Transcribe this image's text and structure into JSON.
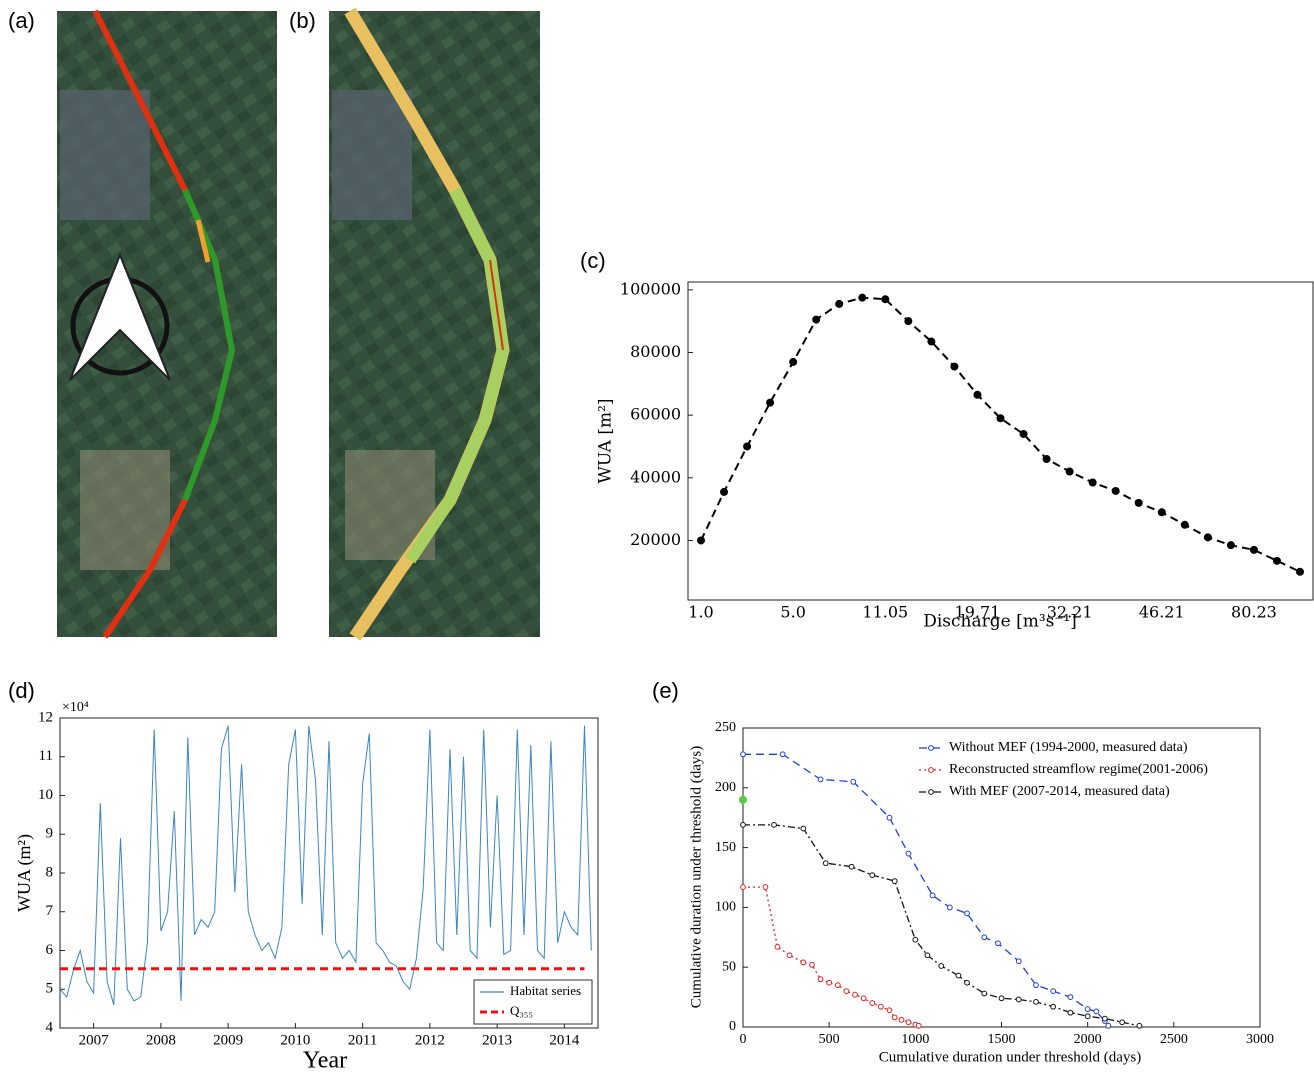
{
  "panels": [
    {
      "label": "(a)"
    },
    {
      "label": "(b)"
    }
  ],
  "chart_data": [
    {
      "type": "line",
      "panel_label": "(c)",
      "x_label": "Discharge [m³s⁻¹]",
      "y_label": "WUA [m²]",
      "categories": [
        "1.0",
        null,
        null,
        null,
        "5.0",
        null,
        null,
        null,
        "11.05",
        null,
        null,
        null,
        "19.71",
        null,
        null,
        null,
        "32.21",
        null,
        null,
        null,
        "46.21",
        null,
        null,
        null,
        "80.23",
        null,
        null
      ],
      "series": [
        {
          "color": "#000000",
          "line_style": "dashed",
          "marker": "filled",
          "values": [
            20000,
            35500,
            50000,
            64000,
            77000,
            90500,
            95500,
            97500,
            97000,
            90000,
            83500,
            75500,
            66500,
            59000,
            54000,
            46000,
            42000,
            38500,
            35800,
            32000,
            29000,
            25000,
            21000,
            18500,
            17000,
            13500,
            10000
          ]
        }
      ],
      "ylim": [
        1000,
        102500
      ],
      "yticks": [
        20000,
        40000,
        60000,
        80000,
        100000
      ]
    },
    {
      "type": "line",
      "panel_label": "(d)",
      "x_label": "Year",
      "y_label": "WUA (m²)",
      "y_scale_label": "×10⁴",
      "xlim": [
        2006.5,
        2014.5
      ],
      "xticks": [
        2007,
        2008,
        2009,
        2010,
        2011,
        2012,
        2013,
        2014
      ],
      "ylim": [
        40000,
        120000
      ],
      "yticks": [
        {
          "value": 40000,
          "label": "4"
        },
        {
          "value": 50000,
          "label": "5"
        },
        {
          "value": 60000,
          "label": "6"
        },
        {
          "value": 70000,
          "label": "7"
        },
        {
          "value": 80000,
          "label": "8"
        },
        {
          "value": 90000,
          "label": "9"
        },
        {
          "value": 100000,
          "label": "10"
        },
        {
          "value": 110000,
          "label": "11"
        },
        {
          "value": 120000,
          "label": "12"
        }
      ],
      "legend": "lower right",
      "series": [
        {
          "name": "Habitat series",
          "color": "#3a87c0",
          "line_style": "solid",
          "x": [
            2006.5,
            2006.6,
            2006.7,
            2006.8,
            2006.9,
            2007.0,
            2007.1,
            2007.2,
            2007.3,
            2007.4,
            2007.5,
            2007.6,
            2007.7,
            2007.8,
            2007.9,
            2008.0,
            2008.1,
            2008.2,
            2008.3,
            2008.4,
            2008.5,
            2008.6,
            2008.7,
            2008.8,
            2008.9,
            2009.0,
            2009.1,
            2009.2,
            2009.3,
            2009.4,
            2009.5,
            2009.6,
            2009.7,
            2009.8,
            2009.9,
            2010.0,
            2010.1,
            2010.2,
            2010.3,
            2010.4,
            2010.5,
            2010.6,
            2010.7,
            2010.8,
            2010.9,
            2011.0,
            2011.1,
            2011.2,
            2011.3,
            2011.4,
            2011.5,
            2011.6,
            2011.7,
            2011.8,
            2011.9,
            2012.0,
            2012.1,
            2012.2,
            2012.3,
            2012.4,
            2012.5,
            2012.6,
            2012.7,
            2012.8,
            2012.9,
            2013.0,
            2013.1,
            2013.2,
            2013.3,
            2013.4,
            2013.5,
            2013.6,
            2013.7,
            2013.8,
            2013.9,
            2014.0,
            2014.1,
            2014.2,
            2014.3,
            2014.4
          ],
          "values": [
            50000,
            48000,
            55000,
            60000,
            52000,
            49000,
            98000,
            52000,
            46000,
            89000,
            50000,
            47000,
            48000,
            62000,
            117000,
            65000,
            70000,
            96000,
            47000,
            115000,
            64000,
            68000,
            66000,
            70000,
            112000,
            118000,
            75000,
            108000,
            70000,
            64000,
            60000,
            62000,
            58000,
            66000,
            108000,
            117000,
            72000,
            118000,
            104000,
            64000,
            114000,
            62000,
            58000,
            60000,
            57000,
            103000,
            116000,
            62000,
            60000,
            57000,
            56000,
            52000,
            50000,
            58000,
            76000,
            117000,
            62000,
            60000,
            112000,
            64000,
            110000,
            60000,
            58000,
            117000,
            66000,
            100000,
            59000,
            60000,
            117000,
            64000,
            113000,
            60000,
            58000,
            114000,
            62000,
            70000,
            66000,
            64000,
            118000,
            60000
          ]
        },
        {
          "name": "Q₃₅₅",
          "color": "#ee1111",
          "line_style": "dashed",
          "x": [
            2006.5,
            2014.3
          ],
          "values": [
            55300,
            55300
          ]
        }
      ]
    },
    {
      "type": "line",
      "panel_label": "(e)",
      "x_label": "Cumulative duration under threshold (days)",
      "y_label": "Cumulative duration under threshold (days)",
      "xlim": [
        0,
        3000
      ],
      "xticks": [
        0,
        500,
        1000,
        1500,
        2000,
        2500,
        3000
      ],
      "ylim": [
        0,
        250
      ],
      "yticks": [
        0,
        50,
        100,
        150,
        200,
        250
      ],
      "legend": "upper right",
      "series": [
        {
          "name": "Without MEF (1994-2000, measured data)",
          "color": "#1f3fe0",
          "line_style": "dashed",
          "marker": "open",
          "x": [
            0,
            230,
            450,
            640,
            850,
            960,
            1100,
            1200,
            1300,
            1400,
            1480,
            1600,
            1700,
            1800,
            1900,
            2000,
            2050,
            2100,
            2120
          ],
          "values": [
            228,
            228,
            207,
            205,
            175,
            145,
            110,
            100,
            95,
            75,
            70,
            55,
            35,
            30,
            25,
            15,
            13,
            5,
            1
          ]
        },
        {
          "name": "Reconstructed streamflow regime(2001-2006)",
          "color": "#e02020",
          "line_style": "dotted",
          "marker": "open",
          "x": [
            0,
            130,
            200,
            270,
            350,
            400,
            450,
            500,
            550,
            600,
            650,
            700,
            750,
            800,
            850,
            880,
            920,
            960,
            1000,
            1020
          ],
          "values": [
            117,
            117,
            67,
            60,
            54,
            52,
            40,
            37,
            35,
            30,
            27,
            24,
            20,
            17,
            14,
            8,
            6,
            4,
            2,
            1
          ]
        },
        {
          "name": "With MEF (2007-2014, measured data)",
          "color": "#111111",
          "line_style": "dashdot",
          "marker": "open",
          "x": [
            0,
            180,
            350,
            480,
            630,
            750,
            880,
            1000,
            1070,
            1150,
            1250,
            1300,
            1400,
            1500,
            1600,
            1700,
            1800,
            1900,
            2000,
            2100,
            2200,
            2300
          ],
          "values": [
            169,
            169,
            166,
            137,
            134,
            127,
            122,
            73,
            60,
            51,
            43,
            37,
            28,
            24,
            23,
            21,
            17,
            12,
            9,
            7,
            4,
            1
          ]
        },
        {
          "color": "#55cc44",
          "line_style": "none",
          "marker": "filled",
          "x": [
            0
          ],
          "values": [
            190
          ]
        }
      ]
    }
  ]
}
